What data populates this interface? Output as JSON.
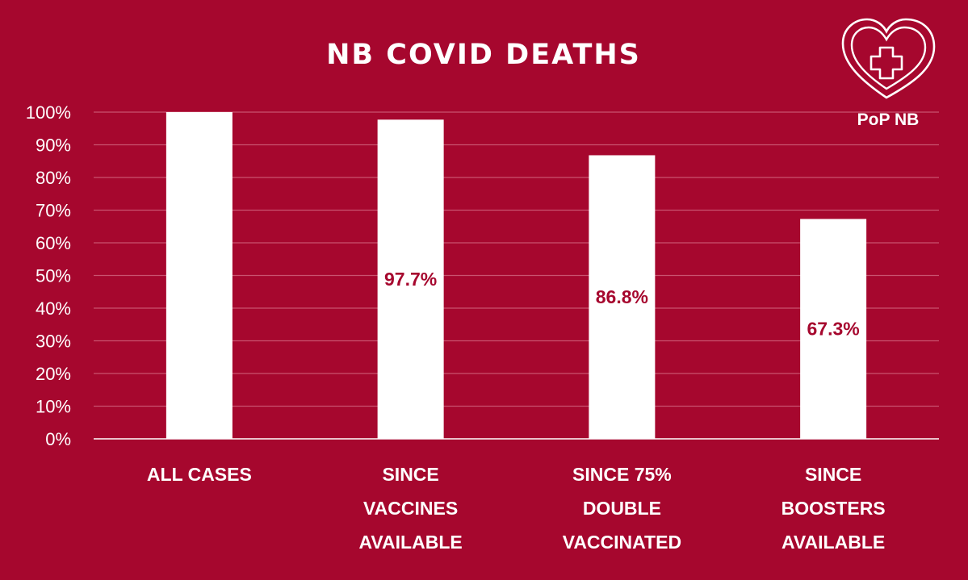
{
  "colors": {
    "background": "#a6072e",
    "bar": "#ffffff",
    "text": "#ffffff",
    "gridline": "#c9536f",
    "axis": "#ffffff",
    "data_label": "#a6072e"
  },
  "logo": {
    "icon": "heart-medical-cross-icon",
    "label": "PoP NB"
  },
  "chart_data": {
    "type": "bar",
    "title": "NB COVID DEATHS",
    "xlabel": "",
    "ylabel": "",
    "ylim": [
      0,
      100
    ],
    "yticks": [
      0,
      10,
      20,
      30,
      40,
      50,
      60,
      70,
      80,
      90,
      100
    ],
    "ytick_labels": [
      "0%",
      "10%",
      "20%",
      "30%",
      "40%",
      "50%",
      "60%",
      "70%",
      "80%",
      "90%",
      "100%"
    ],
    "grid": true,
    "legend": "none",
    "categories": [
      [
        "ALL CASES"
      ],
      [
        "SINCE",
        "VACCINES",
        "AVAILABLE"
      ],
      [
        "SINCE 75%",
        "DOUBLE",
        "VACCINATED"
      ],
      [
        "SINCE",
        "BOOSTERS",
        "AVAILABLE"
      ]
    ],
    "values": [
      100,
      97.7,
      86.8,
      67.3
    ],
    "data_labels": [
      "",
      "97.7%",
      "86.8%",
      "67.3%"
    ]
  }
}
